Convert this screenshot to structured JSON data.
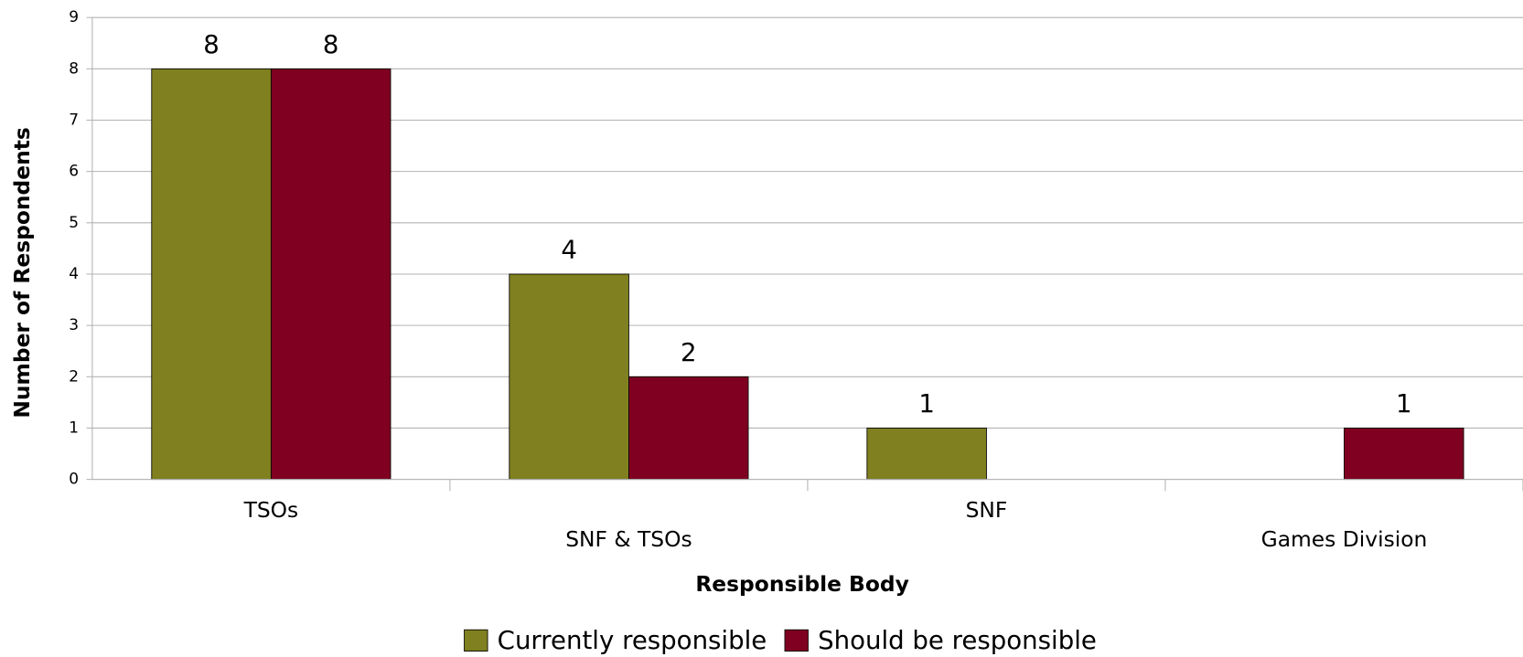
{
  "chart_data": {
    "type": "bar",
    "x_label": "Responsible Body",
    "y_label": "Number of Respondents",
    "categories": [
      "TSOs",
      "SNF & TSOs",
      "SNF",
      "Games Division"
    ],
    "series": [
      {
        "name": "Currently responsible",
        "color": "#808020",
        "values": [
          8,
          4,
          1,
          0
        ]
      },
      {
        "name": "Should be responsible",
        "color": "#7f0021",
        "values": [
          8,
          2,
          0,
          1
        ]
      }
    ],
    "ylim": [
      0,
      9
    ],
    "yticks": [
      0,
      1,
      2,
      3,
      4,
      5,
      6,
      7,
      8,
      9
    ],
    "grid": true,
    "legend": "bottom"
  }
}
